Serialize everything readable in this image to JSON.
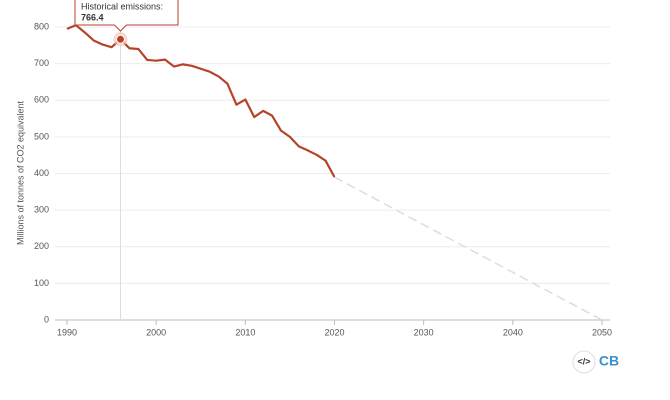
{
  "chart_data": {
    "type": "line",
    "y_label": "Millions of tonnes of CO2 equivalent",
    "series": [
      {
        "color": "#b5432a",
        "dashed": false,
        "x": [
          1990,
          1991,
          1992,
          1993,
          1994,
          1995,
          1996,
          1997,
          1998,
          1999,
          2000,
          2001,
          2002,
          2003,
          2004,
          2005,
          2006,
          2007,
          2008,
          2009,
          2010,
          2011,
          2012,
          2013,
          2014,
          2015,
          2016,
          2017,
          2018,
          2019,
          2020
        ],
        "values": [
          795,
          805,
          785,
          763,
          752,
          745,
          766.4,
          742,
          740,
          710,
          708,
          711,
          692,
          698,
          694,
          686,
          678,
          665,
          645,
          588,
          602,
          554,
          571,
          558,
          517,
          500,
          474,
          463,
          451,
          435,
          390
        ]
      },
      {
        "color": "#dcdce2",
        "dashed": true,
        "x": [
          2020,
          2050
        ],
        "values": [
          390,
          0
        ]
      }
    ],
    "xlim": [
      1990,
      2050
    ],
    "xticks": [
      1990,
      2000,
      2010,
      2020,
      2030,
      2040,
      2050
    ],
    "ylim": [
      0,
      800
    ],
    "yticks": [
      0,
      100,
      200,
      300,
      400,
      500,
      600,
      700,
      800
    ],
    "grid": true,
    "tooltip": {
      "text": "Historical emissions:",
      "x": 1996
    },
    "footer": {
      "embed": "</>",
      "logo": "CB"
    }
  }
}
